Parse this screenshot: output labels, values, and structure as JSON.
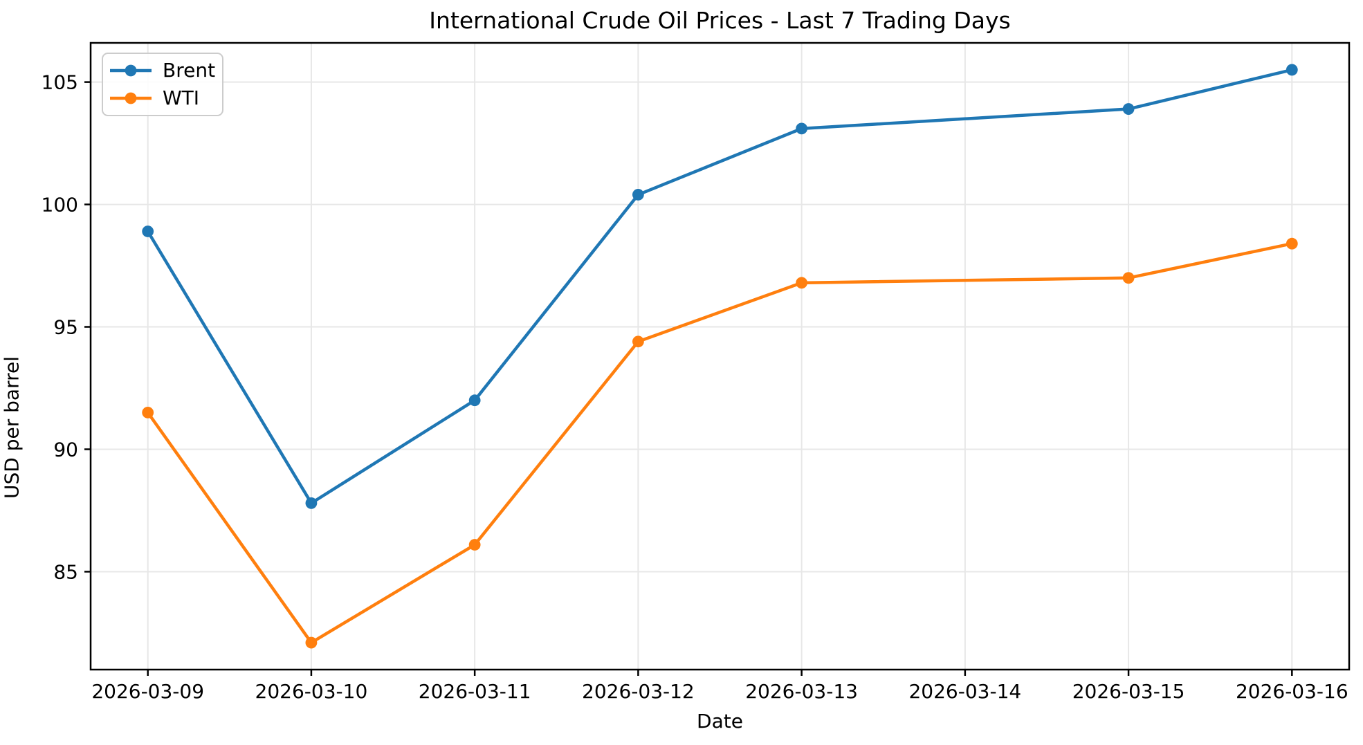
{
  "figure": {
    "title": "International Crude Oil Prices - Last 7 Trading Days"
  },
  "chart_data": {
    "type": "line",
    "title": "International Crude Oil Prices - Last 7 Trading Days",
    "xlabel": "Date",
    "ylabel": "USD per barrel",
    "x": [
      "2026-03-09",
      "2026-03-10",
      "2026-03-11",
      "2026-03-12",
      "2026-03-13",
      "2026-03-15",
      "2026-03-16"
    ],
    "series": [
      {
        "name": "Brent",
        "color": "#1f77b4",
        "values": [
          98.9,
          87.8,
          92.0,
          100.4,
          103.1,
          103.9,
          105.5
        ]
      },
      {
        "name": "WTI",
        "color": "#ff7f0e",
        "values": [
          91.5,
          82.1,
          86.1,
          94.4,
          96.8,
          97.0,
          98.4
        ]
      }
    ],
    "x_tick_labels": [
      "2026-03-09",
      "2026-03-10",
      "2026-03-11",
      "2026-03-12",
      "2026-03-13",
      "2026-03-14",
      "2026-03-15",
      "2026-03-16"
    ],
    "y_ticks": [
      85,
      90,
      95,
      100,
      105
    ],
    "ylim": [
      81.0,
      106.6
    ],
    "xlim_days": [
      -0.35,
      7.35
    ],
    "grid": true,
    "grid_color": "#e7e7e7",
    "axis_color": "#000000",
    "legend_position": "upper left",
    "marker": "circle"
  }
}
